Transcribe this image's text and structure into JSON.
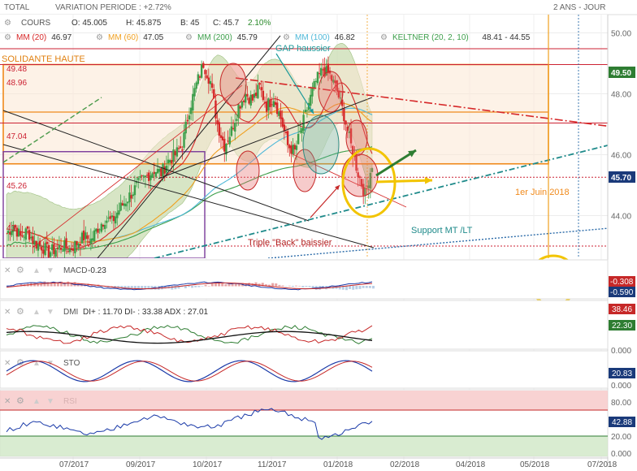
{
  "header": {
    "total_label": "TOTAL",
    "variation": "VARIATION PERIODE : +2.72%",
    "period": "2 ANS - JOUR"
  },
  "legend_cours": {
    "label": "COURS",
    "open": "O: 45.005",
    "high": "H: 45.875",
    "low": "B: 45",
    "close": "C: 45.7",
    "change": "2.10%"
  },
  "legend_ma": [
    {
      "label": "MM (20)",
      "value": "46.97",
      "color": "#d62728"
    },
    {
      "label": "MM (60)",
      "value": "47.05",
      "color": "#f0a020"
    },
    {
      "label": "MM (200)",
      "value": "45.79",
      "color": "#3c9e4a"
    },
    {
      "label": "MM (100)",
      "value": "46.82",
      "color": "#4fb8d8"
    },
    {
      "label": "KELTNER (20, 2, 10)",
      "value": "48.41 - 44.55",
      "color": "#3c9e4a"
    }
  ],
  "annotations": {
    "solidante": "SOLIDANTE HAUTE",
    "gap": "GAP haussier",
    "triple_back": "Triple \"Back\" baissier",
    "support": "Support MT /LT",
    "juin": "1er Juin 2018"
  },
  "level_labels": [
    "49.48",
    "48.96",
    "47.04",
    "45.26",
    "43"
  ],
  "axis_labels": {
    "price_ticks": [
      "50.00",
      "48.00",
      "46.00",
      "44.00"
    ],
    "price_tag_top": "49.50",
    "price_tag_last": "45.70",
    "x_ticks": [
      "07/2017",
      "09/2017",
      "10/2017",
      "11/2017",
      "01/2018",
      "02/2018",
      "04/2018",
      "05/2018",
      "07/2018"
    ]
  },
  "panels": {
    "macd": {
      "label": "MACD",
      "value": "-0.23",
      "tag1": "-0.308",
      "tag2": "-0.590"
    },
    "dmi": {
      "label": "DMI",
      "values": "DI+ : 11.70 DI- : 33.38 ADX : 27.01",
      "tag1": "38.46",
      "tag2": "22.30",
      "tick": "0.000"
    },
    "sto": {
      "label": "STO",
      "tag": "20.83",
      "tick": "0.000"
    },
    "rsi": {
      "label": "RSI",
      "tag": "42.88",
      "ticks": [
        "80.00",
        "20.00",
        "0.000"
      ]
    }
  },
  "colors": {
    "bull": "#3c9e4a",
    "bear": "#d62728",
    "keltner_fill": "#c9dcb2",
    "box_fill": "#fbe8d4",
    "box_stroke": "#f08a1c",
    "resistance": "#d62728",
    "support": "#1e8a8a"
  },
  "chart_data": {
    "type": "candlestick",
    "period": "2 ANS - JOUR",
    "y_axis_ticks": [
      44,
      46,
      48,
      50
    ],
    "ylim": [
      42.6,
      50.6
    ],
    "x_ticks": [
      "07/2017",
      "09/2017",
      "10/2017",
      "11/2017",
      "01/2018",
      "02/2018",
      "04/2018",
      "05/2018",
      "07/2018"
    ],
    "last": {
      "open": 45.005,
      "high": 45.875,
      "low": 45,
      "close": 45.7,
      "change_pct": 2.1
    },
    "moving_averages": {
      "MM20": 46.97,
      "MM60": 47.05,
      "MM200": 45.79,
      "MM100": 46.82
    },
    "keltner": {
      "upper": 48.41,
      "lower": 44.55
    },
    "close_path": [
      43.4,
      43.7,
      43.3,
      43.5,
      43.1,
      43.0,
      42.8,
      42.9,
      43.0,
      42.9,
      43.1,
      43.3,
      43.2,
      43.6,
      43.9,
      43.8,
      44.2,
      44.5,
      44.8,
      45.1,
      45.3,
      45.5,
      45.4,
      45.8,
      46.0,
      46.3,
      47.5,
      48.3,
      49.0,
      48.4,
      47.0,
      46.3,
      46.8,
      47.6,
      48.0,
      47.8,
      48.2,
      47.6,
      47.9,
      47.2,
      46.3,
      46.1,
      46.9,
      47.7,
      48.4,
      48.8,
      48.6,
      48.1,
      47.3,
      46.3,
      45.4,
      44.7,
      45.7
    ],
    "levels": [
      49.48,
      48.96,
      47.04,
      45.26,
      43.0
    ],
    "macd": {
      "value": -0.23,
      "signal": -0.308,
      "hist": -0.59
    },
    "dmi": {
      "di_plus": 11.7,
      "di_minus": 33.38,
      "adx": 27.01
    },
    "sto": 20.83,
    "rsi": 42.88
  }
}
